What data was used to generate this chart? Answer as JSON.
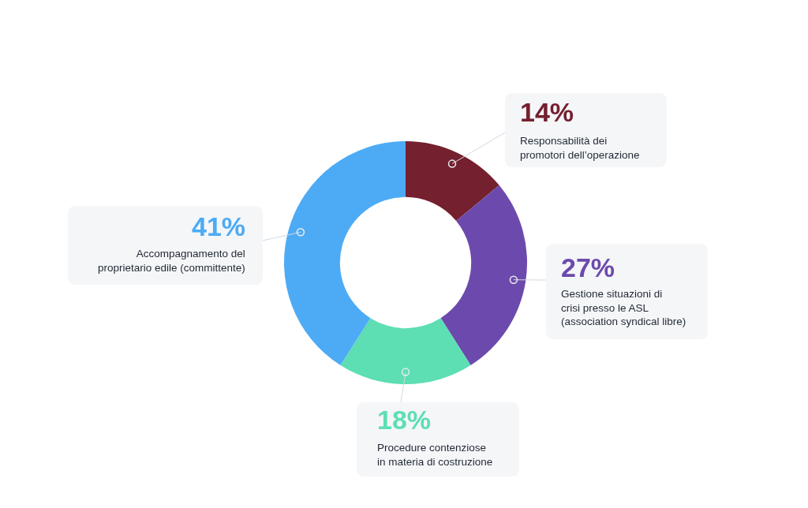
{
  "chart_data": {
    "type": "donut",
    "categories": [
      "Responsabilità dei\npromotori dell’operazione",
      "Gestione situazioni di\ncrisi presso le ASL\n(association syndical libre)",
      "Procedure contenziose\nin materia di costruzione",
      "Accompagnamento del\nproprietario edile (committente)"
    ],
    "values": [
      14,
      27,
      18,
      41
    ],
    "colors": [
      "#74202f",
      "#6c4aad",
      "#5ddeb3",
      "#4dabf5"
    ],
    "value_labels": [
      "14%",
      "27%",
      "18%",
      "41%"
    ]
  }
}
